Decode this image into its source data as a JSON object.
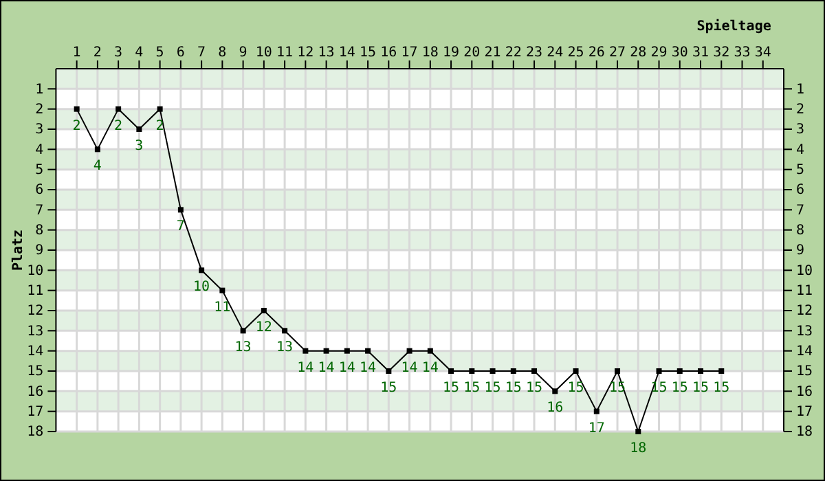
{
  "chart_data": {
    "type": "line",
    "xlabel": "Spieltage",
    "ylabel": "Platz",
    "x": [
      1,
      2,
      3,
      4,
      5,
      6,
      7,
      8,
      9,
      10,
      11,
      12,
      13,
      14,
      15,
      16,
      17,
      18,
      19,
      20,
      21,
      22,
      23,
      24,
      25,
      26,
      27,
      28,
      29,
      30,
      31,
      32
    ],
    "series": [
      {
        "color": "#000000",
        "values": [
          2,
          4,
          2,
          3,
          2,
          7,
          10,
          11,
          13,
          12,
          13,
          14,
          14,
          14,
          14,
          15,
          14,
          14,
          15,
          15,
          15,
          15,
          15,
          16,
          15,
          17,
          15,
          18,
          15,
          15,
          15,
          15
        ]
      }
    ],
    "xlim": [
      0,
      35
    ],
    "xticks": [
      1,
      2,
      3,
      4,
      5,
      6,
      7,
      8,
      9,
      10,
      11,
      12,
      13,
      14,
      15,
      16,
      17,
      18,
      19,
      20,
      21,
      22,
      23,
      24,
      25,
      26,
      27,
      28,
      29,
      30,
      31,
      32,
      33,
      34
    ],
    "ylim": [
      18,
      0
    ],
    "yticks": [
      1,
      2,
      3,
      4,
      5,
      6,
      7,
      8,
      9,
      10,
      11,
      12,
      13,
      14,
      15,
      16,
      17,
      18
    ],
    "y2lim": [
      18,
      0
    ],
    "y2ticks": [
      1,
      2,
      3,
      4,
      5,
      6,
      7,
      8,
      9,
      10,
      11,
      12,
      13,
      14,
      15,
      16,
      17,
      18
    ],
    "grid": true,
    "marker": "square",
    "line_style": "solid",
    "data_labels": true
  }
}
